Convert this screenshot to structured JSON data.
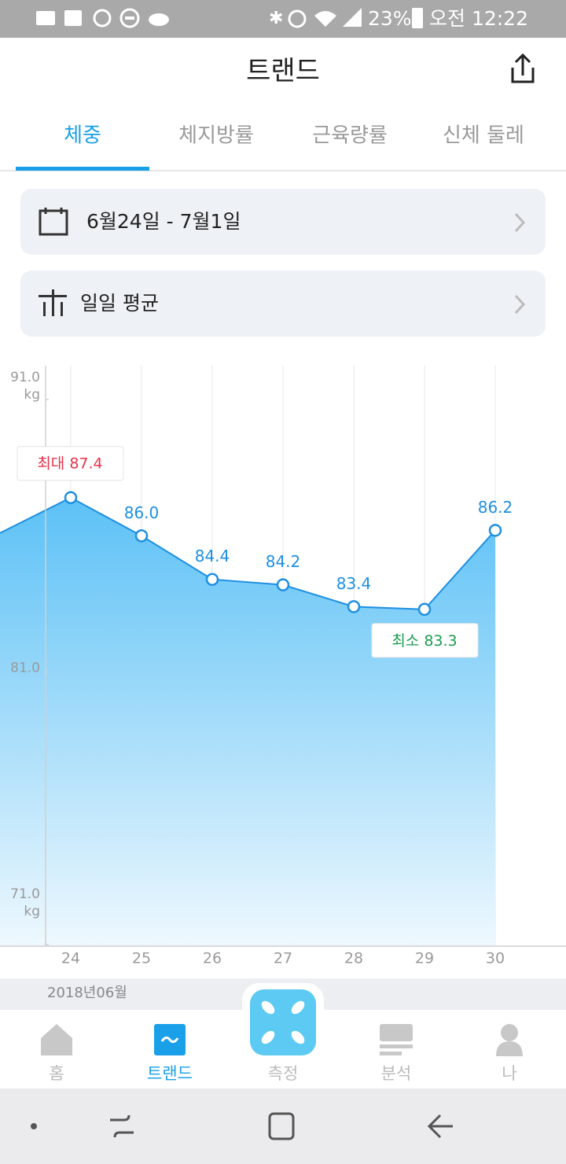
{
  "status_bar": {
    "battery": "23%",
    "time": "오전 12:22"
  },
  "header": {
    "title": "트랜드"
  },
  "tabs": [
    "체중",
    "체지방률",
    "근육량률",
    "신체 둘레"
  ],
  "date_range": "6월24일 - 7월1일",
  "aggregation": "일일 평균",
  "chart_data": {
    "type": "area",
    "categories": [
      null,
      "24",
      "25",
      "26",
      "27",
      "28",
      "29",
      "30"
    ],
    "values": [
      86.1,
      87.4,
      86.0,
      84.4,
      84.2,
      83.4,
      83.3,
      86.2
    ],
    "value_labels": [
      null,
      "87.4",
      "86.0",
      "84.4",
      "84.2",
      "83.4",
      "83.3",
      "86.2"
    ],
    "max_label": "최대",
    "min_label": "최소",
    "y_unit": "kg",
    "ylim": [
      71,
      91
    ],
    "yticks": [
      {
        "value": 91,
        "label": "91.0"
      },
      {
        "value": 81,
        "label": "81.0"
      },
      {
        "value": 71,
        "label": "71.0"
      }
    ],
    "color": "#1e8fe1",
    "grid": true
  },
  "month_label": "2018년06월",
  "bottom_nav": [
    "홈",
    "트랜드",
    "측정",
    "분석",
    "나"
  ]
}
